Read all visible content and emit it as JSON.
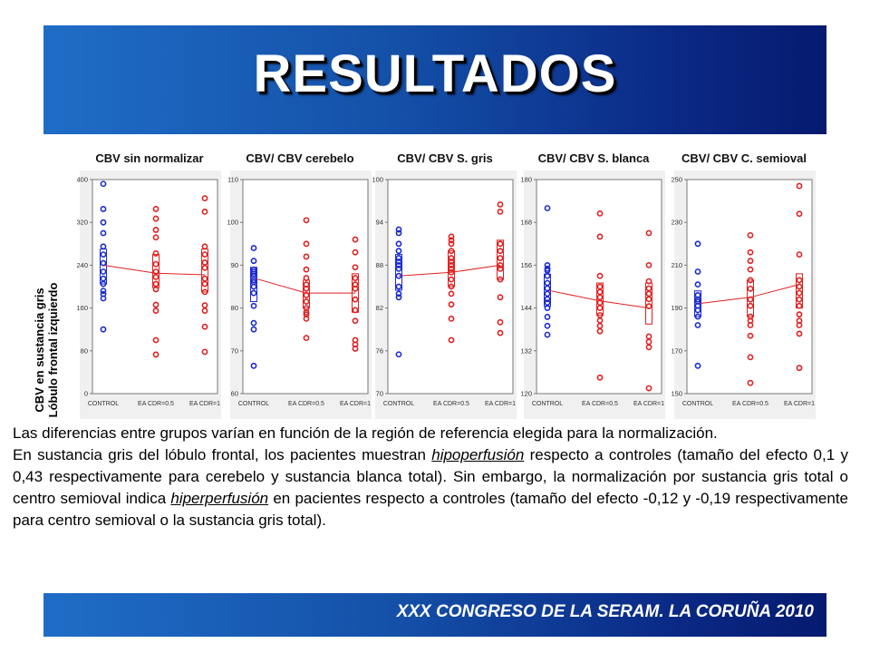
{
  "header": {
    "title": "RESULTADOS"
  },
  "colors": {
    "control": "#1a2ad0",
    "patient": "#e02020",
    "mean_line": "#e02020"
  },
  "chart_data": {
    "type": "scatter",
    "ylabel_line1": "CBV en sustancia gris",
    "ylabel_line2": "Lóbulo frontal izquierdo",
    "categories": [
      "CONTROL",
      "EA CDR=0.5",
      "EA CDR=1"
    ],
    "panels": [
      {
        "title": "CBV sin normalizar",
        "ylim": [
          0,
          400
        ],
        "yticks": [
          0,
          80,
          160,
          240,
          320,
          400
        ],
        "groups": [
          [
            120,
            178,
            186,
            192,
            205,
            215,
            228,
            244,
            260,
            275,
            300,
            320,
            345,
            392
          ],
          [
            73,
            100,
            155,
            166,
            195,
            205,
            218,
            228,
            242,
            262,
            292,
            306,
            327,
            345
          ],
          [
            78,
            125,
            155,
            165,
            190,
            205,
            215,
            235,
            245,
            260,
            275,
            340,
            365
          ]
        ],
        "means": [
          240,
          225,
          222
        ],
        "boxes": [
          [
            205,
            270
          ],
          [
            198,
            260
          ],
          [
            190,
            270
          ]
        ]
      },
      {
        "title": "CBV/ CBV cerebelo",
        "ylim": [
          60,
          110
        ],
        "yticks": [
          60,
          70,
          80,
          90,
          100,
          110
        ],
        "groups": [
          [
            66.5,
            75,
            76.5,
            80.5,
            83.5,
            85,
            86,
            86.5,
            87.5,
            88,
            88.5,
            89,
            91,
            94
          ],
          [
            73,
            77.5,
            78.5,
            79,
            80,
            81.5,
            83,
            84.5,
            85.5,
            87,
            89,
            92,
            95,
            100.5
          ],
          [
            70.5,
            71.5,
            72.5,
            77,
            79.5,
            82,
            84.5,
            85.5,
            87,
            89.5,
            93,
            96
          ]
        ],
        "means": [
          87,
          83.5,
          83.5
        ],
        "boxes": [
          [
            81.5,
            89.5
          ],
          [
            80,
            86.5
          ],
          [
            79,
            88
          ]
        ]
      },
      {
        "title": "CBV/ CBV S. gris",
        "ylim": [
          70,
          100
        ],
        "yticks": [
          70,
          76,
          82,
          88,
          94,
          100
        ],
        "groups": [
          [
            75.5,
            83.5,
            84,
            85,
            86.5,
            87.5,
            88,
            88.5,
            89,
            90,
            91,
            92.5,
            93
          ],
          [
            77.5,
            80.5,
            82.5,
            84,
            85,
            86,
            87,
            87.5,
            88,
            88.5,
            89,
            90,
            91,
            91.5,
            92
          ],
          [
            78.5,
            80,
            83.5,
            86,
            87.5,
            88,
            89,
            90,
            91,
            95.5,
            96.5
          ]
        ],
        "means": [
          86.5,
          87,
          88
        ],
        "boxes": [
          [
            84.5,
            89.5
          ],
          [
            85,
            90
          ],
          [
            86,
            91.5
          ]
        ]
      },
      {
        "title": "CBV/ CBV S. blanca",
        "ylim": [
          120,
          180
        ],
        "yticks": [
          120,
          132,
          144,
          156,
          168,
          180
        ],
        "groups": [
          [
            136.5,
            139,
            141.5,
            144,
            145.5,
            146.5,
            148,
            149.5,
            151,
            153,
            154.5,
            155,
            156,
            172
          ],
          [
            124.5,
            137.5,
            139,
            140.5,
            142,
            144,
            145.5,
            147,
            148.5,
            150,
            153,
            164,
            170.5
          ],
          [
            121.5,
            133,
            134.5,
            136,
            144.5,
            146.5,
            148,
            149.5,
            151.5,
            156,
            165
          ]
        ],
        "means": [
          149,
          146,
          144
        ],
        "boxes": [
          [
            144.5,
            153.5
          ],
          [
            142,
            151
          ],
          [
            139.5,
            151
          ]
        ]
      },
      {
        "title": "CBV/ CBV C. semioval",
        "ylim": [
          150,
          250
        ],
        "yticks": [
          150,
          170,
          190,
          210,
          230,
          250
        ],
        "groups": [
          [
            163,
            182,
            186,
            189,
            191,
            193,
            194,
            196,
            201,
            207,
            220
          ],
          [
            155,
            167,
            177,
            182,
            184,
            186,
            191,
            194,
            199,
            203,
            208,
            212,
            216,
            224
          ],
          [
            162,
            178,
            182,
            184,
            187,
            191,
            194,
            197,
            200,
            203,
            215,
            234,
            247
          ]
        ],
        "means": [
          192,
          195,
          201
        ],
        "boxes": [
          [
            186,
            198
          ],
          [
            186,
            203
          ],
          [
            190,
            206
          ]
        ]
      }
    ]
  },
  "summary": {
    "p1": "Las diferencias entre grupos varían en función de la región de referencia elegida para la normalización.",
    "p2_a": "En sustancia gris del lóbulo frontal, los pacientes muestran ",
    "p2_hypo": "hipoperfusión",
    "p2_b": " respecto a controles (tamaño del efecto 0,1 y 0,43 respectivamente para cerebelo y sustancia blanca total). Sin embargo, la normalización por sustancia gris total o centro semioval indica ",
    "p2_hyper": "hiperperfusión",
    "p2_c": " en pacientes respecto a controles (tamaño del efecto -0,12 y -0,19 respectivamente para centro semioval o la sustancia gris total)."
  },
  "footer": {
    "text": "XXX CONGRESO DE LA SERAM. LA CORUÑA 2010"
  }
}
